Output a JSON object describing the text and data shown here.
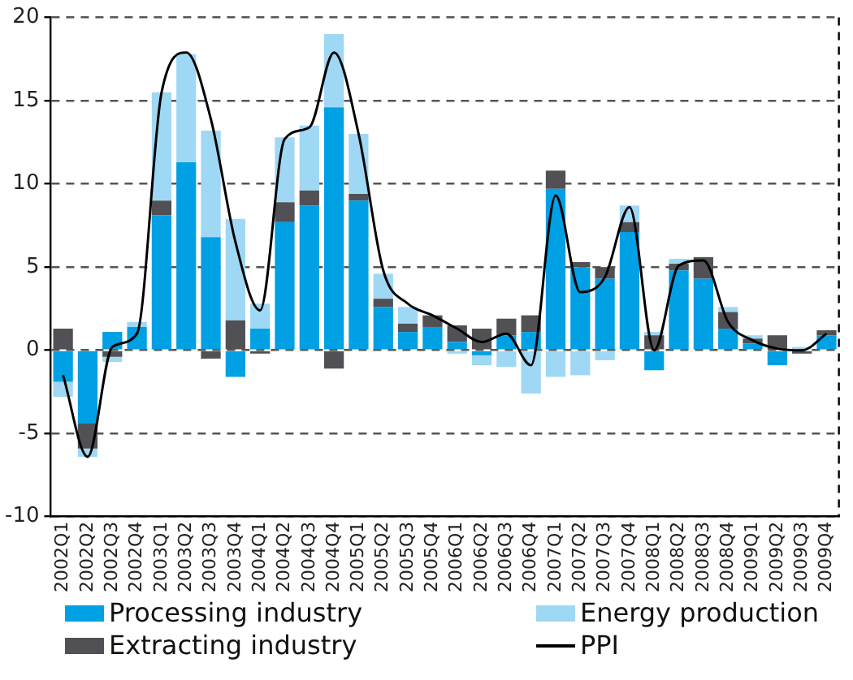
{
  "chart_data": {
    "type": "bar",
    "stacked": true,
    "categories": [
      "2002Q1",
      "2002Q2",
      "2002Q3",
      "2002Q4",
      "2003Q1",
      "2003Q2",
      "2003Q3",
      "2003Q4",
      "2004Q1",
      "2004Q2",
      "2004Q3",
      "2004Q4",
      "2005Q1",
      "2005Q2",
      "2005Q3",
      "2005Q4",
      "2006Q1",
      "2006Q2",
      "2006Q3",
      "2006Q4",
      "2007Q1",
      "2007Q2",
      "2007Q3",
      "2007Q4",
      "2008Q1",
      "2008Q2",
      "2008Q3",
      "2008Q4",
      "2009Q1",
      "2009Q2",
      "2009Q3",
      "2009Q4"
    ],
    "series": [
      {
        "name": "Processing industry",
        "color": "#00a0e4",
        "values": [
          -1.9,
          -4.4,
          1.1,
          1.4,
          8.1,
          11.3,
          6.8,
          -1.6,
          1.3,
          7.7,
          8.7,
          14.6,
          9.0,
          2.6,
          1.1,
          1.4,
          0.5,
          -0.3,
          0.9,
          1.1,
          9.7,
          5.0,
          4.3,
          7.1,
          -1.2,
          4.8,
          4.3,
          1.3,
          0.4,
          -0.9,
          0,
          0.9
        ]
      },
      {
        "name": "Extracting industry",
        "color": "#505055",
        "values": [
          1.3,
          -1.5,
          -0.4,
          0,
          0.9,
          0,
          -0.5,
          1.8,
          -0.2,
          1.2,
          0.9,
          -1.1,
          0.4,
          0.5,
          0.5,
          0.7,
          1.0,
          1.3,
          1.0,
          1.0,
          1.1,
          0.3,
          0.7,
          0.6,
          0.9,
          0.4,
          1.3,
          1.0,
          0.3,
          0.9,
          -0.2,
          0.3
        ]
      },
      {
        "name": "Energy production",
        "color": "#9fd8f4",
        "values": [
          -0.9,
          -0.5,
          -0.3,
          0.3,
          6.5,
          6.5,
          6.4,
          6.1,
          1.5,
          3.9,
          3.9,
          4.4,
          3.6,
          1.5,
          1.0,
          0,
          -0.2,
          -0.6,
          -1.0,
          -2.6,
          -1.6,
          -1.5,
          -0.6,
          1.0,
          0.2,
          0.3,
          0,
          0.3,
          0.2,
          0,
          0.2,
          0
        ]
      },
      {
        "name": "PPI",
        "type": "line",
        "color": "#000000",
        "values": [
          -1.5,
          -6.4,
          0.2,
          1.0,
          15.5,
          17.9,
          13.9,
          6.5,
          2.4,
          12.7,
          13.4,
          17.9,
          13.0,
          4.8,
          2.8,
          2.1,
          1.3,
          0.5,
          1.0,
          -0.9,
          9.3,
          3.5,
          4.4,
          8.6,
          0,
          5.1,
          5.4,
          1.7,
          0.6,
          0.1,
          0,
          1.0
        ]
      }
    ],
    "ylim": [
      -10,
      20
    ],
    "yticks": [
      -10,
      -5,
      0,
      5,
      10,
      15,
      20
    ],
    "grid": "y",
    "legend": "bottom",
    "marker": "none"
  }
}
